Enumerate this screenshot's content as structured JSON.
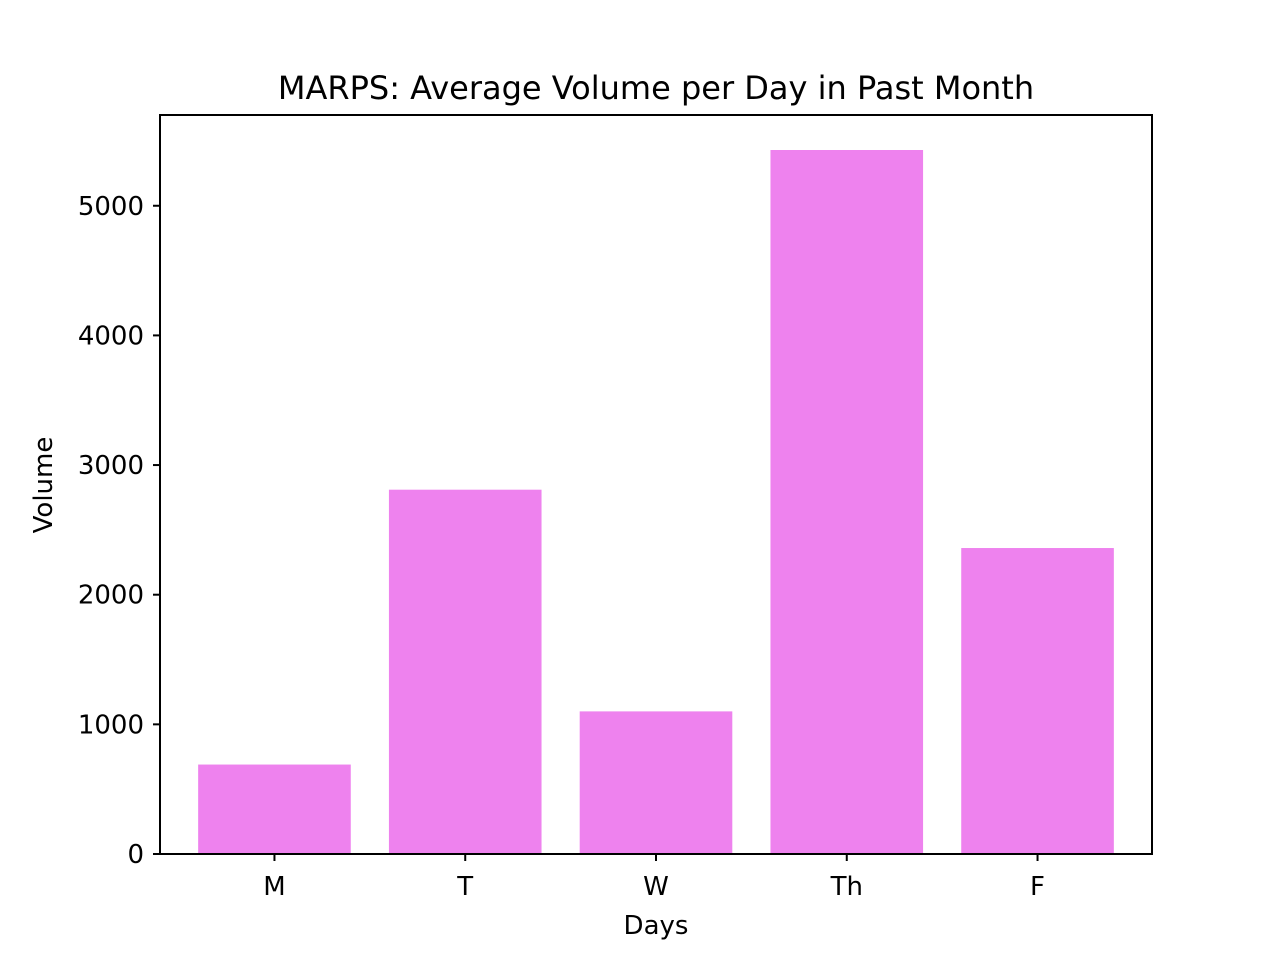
{
  "chart_data": {
    "type": "bar",
    "title": "MARPS: Average Volume per Day in Past Month",
    "xlabel": "Days",
    "ylabel": "Volume",
    "categories": [
      "M",
      "T",
      "W",
      "Th",
      "F"
    ],
    "values": [
      690,
      2810,
      1100,
      5430,
      2360
    ],
    "ylim": [
      0,
      5700
    ],
    "yticks": [
      0,
      1000,
      2000,
      3000,
      4000,
      5000
    ],
    "bar_color": "#ee82ee",
    "grid": false,
    "legend": "none"
  }
}
